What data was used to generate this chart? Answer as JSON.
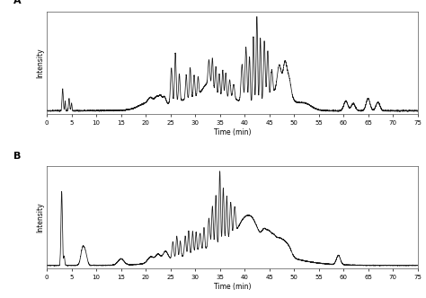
{
  "title_A": "A",
  "title_B": "B",
  "xlabel": "Time (min)",
  "ylabel": "Intensity",
  "xlim": [
    0,
    75
  ],
  "xticks": [
    0,
    5,
    10,
    15,
    20,
    25,
    30,
    35,
    40,
    45,
    50,
    55,
    60,
    65,
    70,
    75
  ],
  "line_color": "#1a1a1a",
  "line_width": 0.55,
  "figsize": [
    4.74,
    3.32
  ],
  "dpi": 100
}
